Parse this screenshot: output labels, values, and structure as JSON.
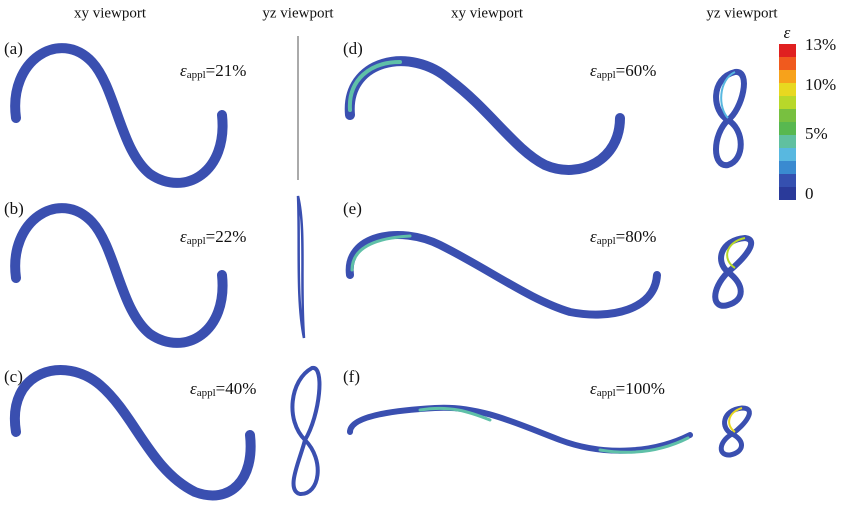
{
  "headers": [
    "xy viewport",
    "yz viewport",
    "xy viewport",
    "yz viewport"
  ],
  "panels": [
    {
      "label": "(a)",
      "strain": {
        "symbol": "ε",
        "subscript": "appl",
        "value": "=21%"
      }
    },
    {
      "label": "(b)",
      "strain": {
        "symbol": "ε",
        "subscript": "appl",
        "value": "=22%"
      }
    },
    {
      "label": "(c)",
      "strain": {
        "symbol": "ε",
        "subscript": "appl",
        "value": "=40%"
      }
    },
    {
      "label": "(d)",
      "strain": {
        "symbol": "ε",
        "subscript": "appl",
        "value": "=60%"
      }
    },
    {
      "label": "(e)",
      "strain": {
        "symbol": "ε",
        "subscript": "appl",
        "value": "=80%"
      }
    },
    {
      "label": "(f)",
      "strain": {
        "symbol": "ε",
        "subscript": "appl",
        "value": "=100%"
      }
    }
  ],
  "colorbar": {
    "title": "ε",
    "labels": [
      "13%",
      "10%",
      "5%",
      "0"
    ]
  }
}
